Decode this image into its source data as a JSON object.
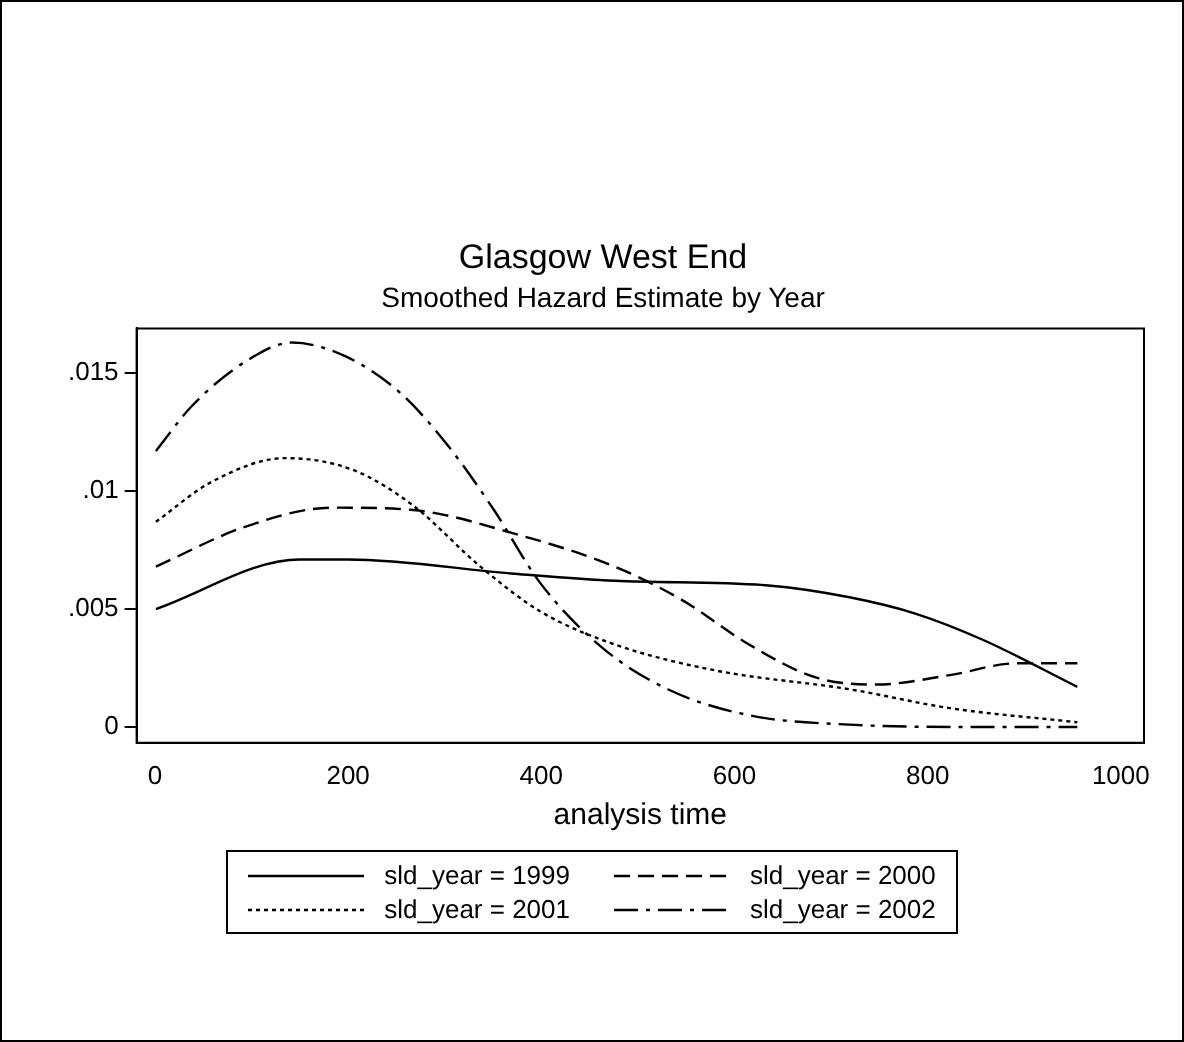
{
  "chart_data": {
    "type": "line",
    "title": "Glasgow West End",
    "subtitle": "Smoothed Hazard Estimate by Year",
    "xlabel": "analysis time",
    "xlim": [
      -19,
      1024
    ],
    "xticks": [
      0,
      200,
      400,
      600,
      800,
      1000
    ],
    "ylim": [
      -0.00067,
      0.0169
    ],
    "yticks": [
      {
        "value": 0,
        "label": "0"
      },
      {
        "value": 0.005,
        "label": ".005"
      },
      {
        "value": 0.01,
        "label": ".01"
      },
      {
        "value": 0.015,
        "label": ".015"
      }
    ],
    "grid": false,
    "legend": "bottom",
    "marker": "none",
    "series": [
      {
        "name": "sld_year = 1999",
        "color": "#000000",
        "line_style": "solid",
        "x": [
          1,
          150,
          200,
          372,
          476,
          635,
          719,
          788,
          857,
          955
        ],
        "values": [
          0.005,
          0.0071,
          0.0071,
          0.0065,
          0.0062,
          0.006,
          0.0055,
          0.0048,
          0.0037,
          0.0017
        ]
      },
      {
        "name": "sld_year = 2000",
        "color": "#000000",
        "line_style": "dashed",
        "x": [
          1,
          94,
          184,
          267,
          372,
          476,
          545,
          615,
          684,
          747,
          823,
          892,
          955
        ],
        "values": [
          0.0068,
          0.0085,
          0.0093,
          0.0092,
          0.0082,
          0.0068,
          0.0054,
          0.0035,
          0.0021,
          0.0018,
          0.0022,
          0.0027,
          0.0027
        ]
      },
      {
        "name": "sld_year = 2001",
        "color": "#000000",
        "line_style": "dotted",
        "x": [
          1,
          59,
          135,
          205,
          267,
          337,
          399,
          476,
          580,
          719,
          823,
          955
        ],
        "values": [
          0.0087,
          0.0104,
          0.0114,
          0.0109,
          0.0094,
          0.0068,
          0.0049,
          0.0035,
          0.0024,
          0.0016,
          0.0008,
          0.0002
        ]
      },
      {
        "name": "sld_year = 2002",
        "color": "#000000",
        "line_style": "dashdot",
        "x": [
          1,
          38,
          94,
          142,
          198,
          253,
          302,
          351,
          399,
          462,
          531,
          615,
          719,
          857,
          955
        ],
        "values": [
          0.0117,
          0.0136,
          0.0155,
          0.0163,
          0.0157,
          0.0142,
          0.012,
          0.0092,
          0.0061,
          0.0034,
          0.0016,
          0.0005,
          0.0001,
          0,
          0
        ]
      }
    ]
  }
}
